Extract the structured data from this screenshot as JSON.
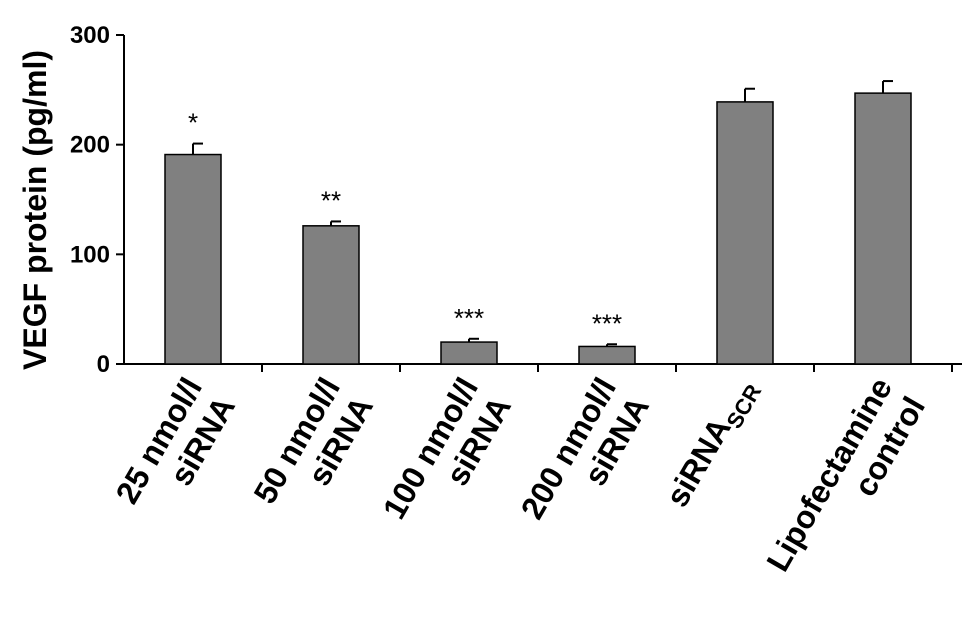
{
  "chart_data": {
    "type": "bar",
    "ylabel": "VEGF protein (pg/ml)",
    "xlabel": "",
    "ylim": [
      0,
      300
    ],
    "yticks": [
      0,
      100,
      200,
      300
    ],
    "grid": false,
    "bar_color": "#808080",
    "categories": [
      {
        "lines": [
          "25 nmol/l",
          "siRNA"
        ],
        "sub": ""
      },
      {
        "lines": [
          "50 nmol/l",
          "siRNA"
        ],
        "sub": ""
      },
      {
        "lines": [
          "100 nmol/l",
          "siRNA"
        ],
        "sub": ""
      },
      {
        "lines": [
          "200 nmol/l",
          "siRNA"
        ],
        "sub": ""
      },
      {
        "lines": [
          "siRNA"
        ],
        "sub": "SCR"
      },
      {
        "lines": [
          "Lipofectamine",
          "control"
        ],
        "sub": ""
      }
    ],
    "values": [
      191,
      126,
      20,
      16,
      239,
      247
    ],
    "errors": [
      10,
      4,
      3,
      2,
      12,
      11
    ],
    "significance": [
      "*",
      "**",
      "***",
      "***",
      "",
      ""
    ]
  }
}
